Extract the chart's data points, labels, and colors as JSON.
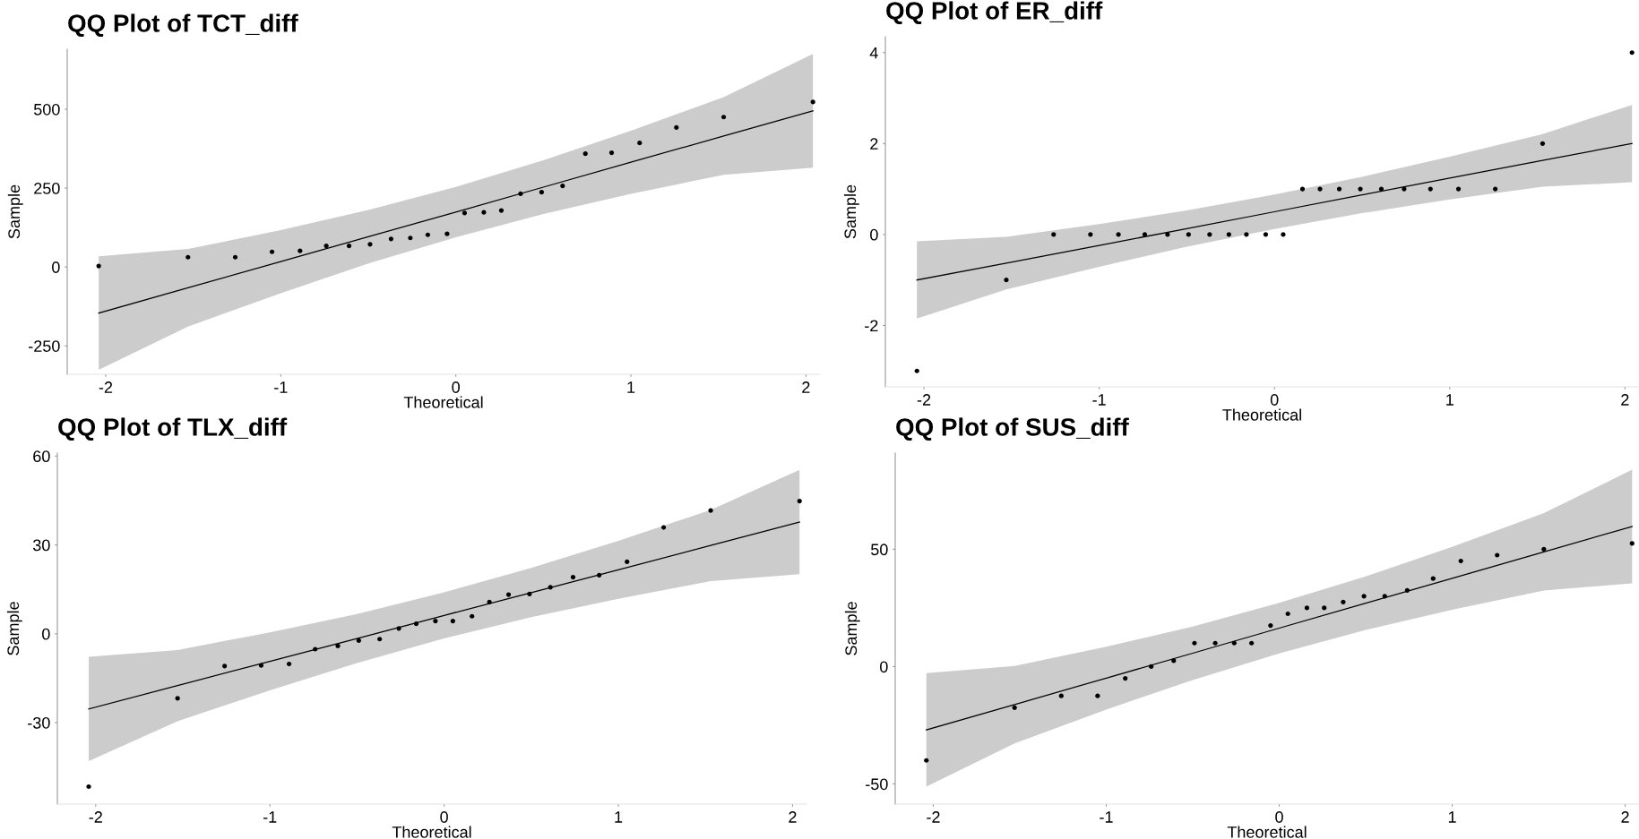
{
  "chart_data": [
    {
      "type": "scatter",
      "title": "QQ Plot of TCT_diff",
      "xlabel": "Theoretical",
      "ylabel": "Sample",
      "xlim": [
        -2.22,
        2.08
      ],
      "ylim": [
        -340,
        690
      ],
      "xticks": [
        -2,
        -1,
        0,
        1,
        2
      ],
      "yticks": [
        -250,
        0,
        250,
        500
      ],
      "grid": false,
      "line_style": "solid",
      "series": [
        {
          "type": "scatter",
          "marker": "circle",
          "color": "#000000",
          "x": [
            -2.04,
            -1.53,
            -1.26,
            -1.05,
            -0.89,
            -0.74,
            -0.61,
            -0.49,
            -0.37,
            -0.26,
            -0.16,
            -0.05,
            0.05,
            0.16,
            0.26,
            0.37,
            0.49,
            0.61,
            0.74,
            0.89,
            1.05,
            1.26,
            1.53,
            2.04
          ],
          "values": [
            3,
            31,
            31,
            48,
            51,
            67,
            67,
            72,
            89,
            92,
            102,
            105,
            171,
            173,
            179,
            232,
            237,
            257,
            359,
            362,
            393,
            442,
            475,
            523
          ]
        },
        {
          "type": "line",
          "color": "#000000",
          "x": [
            -2.04,
            -1.53,
            -1,
            -0.5,
            0,
            0.5,
            1,
            1.53,
            2.04
          ],
          "values": [
            -146,
            -66,
            17,
            96,
            174,
            253,
            332,
            415,
            495
          ],
          "lower": [
            -326,
            -189,
            -83,
            11,
            94,
            168,
            232,
            292,
            315
          ],
          "upper": [
            34,
            57,
            117,
            181,
            254,
            338,
            432,
            538,
            675
          ]
        }
      ]
    },
    {
      "type": "scatter",
      "title": "QQ Plot of ER_diff",
      "xlabel": "Theoretical",
      "ylabel": "Sample",
      "xlim": [
        -2.22,
        2.08
      ],
      "ylim": [
        -3.35,
        4.35
      ],
      "xticks": [
        -2,
        -1,
        0,
        1,
        2
      ],
      "yticks": [
        -2,
        0,
        2,
        4
      ],
      "grid": false,
      "line_style": "solid",
      "series": [
        {
          "type": "scatter",
          "marker": "circle",
          "color": "#000000",
          "x": [
            -2.04,
            -1.53,
            -1.26,
            -1.05,
            -0.89,
            -0.74,
            -0.61,
            -0.49,
            -0.37,
            -0.26,
            -0.16,
            -0.05,
            0.05,
            0.16,
            0.26,
            0.37,
            0.49,
            0.61,
            0.74,
            0.89,
            1.05,
            1.26,
            1.53,
            2.04
          ],
          "values": [
            -3,
            -1,
            0,
            0,
            0,
            0,
            0,
            0,
            0,
            0,
            0,
            0,
            0,
            1,
            1,
            1,
            1,
            1,
            1,
            1,
            1,
            1,
            2,
            4
          ]
        },
        {
          "type": "line",
          "color": "#000000",
          "x": [
            -2.04,
            -1.53,
            -1,
            -0.5,
            0,
            0.5,
            1,
            1.53,
            2.04
          ],
          "values": [
            -1.0,
            -0.63,
            -0.24,
            0.13,
            0.5,
            0.87,
            1.24,
            1.63,
            2.0
          ],
          "lower": [
            -1.85,
            -1.21,
            -0.71,
            -0.27,
            0.12,
            0.47,
            0.77,
            1.05,
            1.15
          ],
          "upper": [
            -0.15,
            -0.05,
            0.23,
            0.53,
            0.88,
            1.27,
            1.71,
            2.21,
            2.85
          ]
        }
      ]
    },
    {
      "type": "scatter",
      "title": "QQ Plot of TLX_diff",
      "xlabel": "Theoretical",
      "ylabel": "Sample",
      "xlim": [
        -2.22,
        2.08
      ],
      "ylim": [
        -57.5,
        61
      ],
      "xticks": [
        -2,
        -1,
        0,
        1,
        2
      ],
      "yticks": [
        -30,
        0,
        30,
        60
      ],
      "grid": false,
      "line_style": "solid",
      "series": [
        {
          "type": "scatter",
          "marker": "circle",
          "color": "#000000",
          "x": [
            -2.04,
            -1.53,
            -1.26,
            -1.05,
            -0.89,
            -0.74,
            -0.61,
            -0.49,
            -0.37,
            -0.26,
            -0.16,
            -0.05,
            0.05,
            0.16,
            0.26,
            0.37,
            0.49,
            0.61,
            0.74,
            0.89,
            1.05,
            1.26,
            1.53,
            2.04
          ],
          "values": [
            -51.6,
            -21.8,
            -10.9,
            -10.7,
            -10.2,
            -5.2,
            -4.1,
            -2.3,
            -1.8,
            1.8,
            3.4,
            4.3,
            4.3,
            5.9,
            10.7,
            13.2,
            13.4,
            15.7,
            19.1,
            19.8,
            24.3,
            35.9,
            41.6,
            44.8
          ]
        },
        {
          "type": "line",
          "color": "#000000",
          "x": [
            -2.04,
            -1.53,
            -1,
            -0.5,
            0,
            0.5,
            1,
            1.53,
            2.04
          ],
          "values": [
            -25.4,
            -17.5,
            -9.3,
            -1.6,
            6.2,
            13.9,
            21.6,
            29.8,
            37.7
          ],
          "lower": [
            -43.0,
            -29.5,
            -19.1,
            -9.9,
            -1.6,
            5.6,
            11.8,
            17.8,
            20.1
          ],
          "upper": [
            -7.8,
            -5.5,
            0.5,
            6.7,
            14.0,
            22.2,
            31.4,
            41.8,
            55.3
          ]
        }
      ]
    },
    {
      "type": "scatter",
      "title": "QQ Plot of SUS_diff",
      "xlabel": "Theoretical",
      "ylabel": "Sample",
      "xlim": [
        -2.22,
        2.08
      ],
      "ylim": [
        -58.6,
        91
      ],
      "xticks": [
        -2,
        -1,
        0,
        1,
        2
      ],
      "yticks": [
        -50,
        0,
        50
      ],
      "grid": false,
      "line_style": "solid",
      "series": [
        {
          "type": "scatter",
          "marker": "circle",
          "color": "#000000",
          "x": [
            -2.04,
            -1.53,
            -1.26,
            -1.05,
            -0.89,
            -0.74,
            -0.61,
            -0.49,
            -0.37,
            -0.26,
            -0.16,
            -0.05,
            0.05,
            0.16,
            0.26,
            0.37,
            0.49,
            0.61,
            0.74,
            0.89,
            1.05,
            1.26,
            1.53,
            2.04
          ],
          "values": [
            -40,
            -17.5,
            -12.5,
            -12.5,
            -5,
            0,
            2.5,
            10,
            10,
            10,
            10,
            17.5,
            22.5,
            25,
            25,
            27.5,
            30,
            30,
            32.5,
            37.5,
            45,
            47.5,
            50,
            52.5
          ]
        },
        {
          "type": "line",
          "color": "#000000",
          "x": [
            -2.04,
            -1.53,
            -1,
            -0.5,
            0,
            0.5,
            1,
            1.53,
            2.04
          ],
          "values": [
            -27.0,
            -16.2,
            -4.9,
            5.7,
            16.4,
            27.0,
            37.6,
            48.9,
            59.7
          ],
          "lower": [
            -51.2,
            -32.7,
            -18.3,
            -5.7,
            5.6,
            15.6,
            24.2,
            32.4,
            35.5
          ],
          "upper": [
            -2.8,
            0.3,
            8.5,
            17.1,
            27.2,
            38.4,
            51.0,
            65.4,
            83.9
          ]
        }
      ]
    }
  ]
}
